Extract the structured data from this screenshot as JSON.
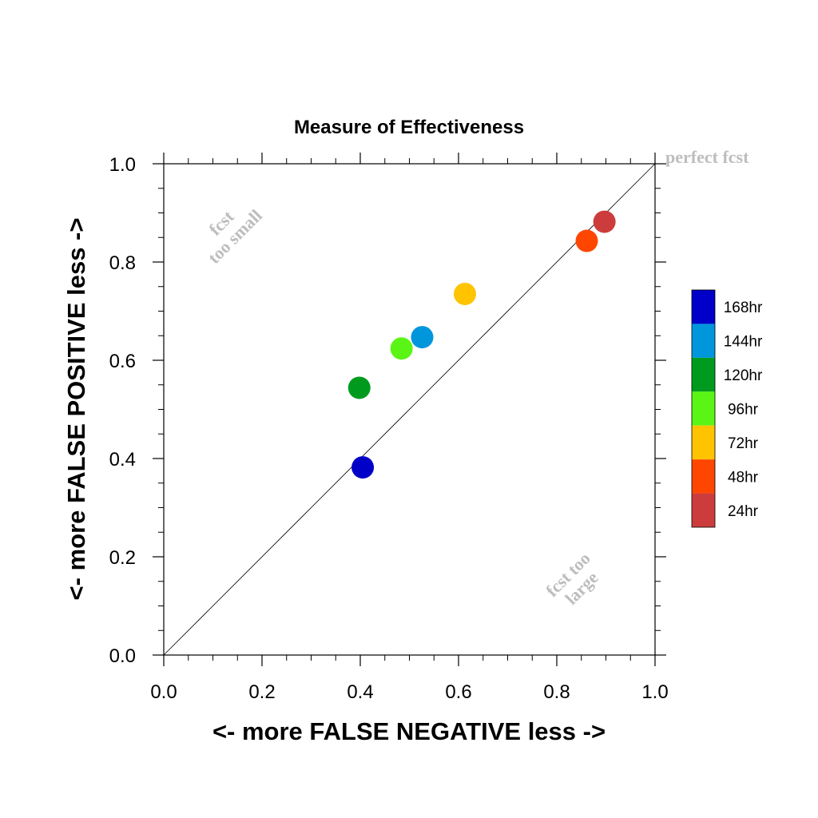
{
  "chart_data": {
    "type": "scatter",
    "title": "Measure of Effectiveness",
    "xlabel": "<- more   FALSE NEGATIVE   less ->",
    "ylabel": "<- more   FALSE POSITIVE   less ->",
    "xlim": [
      0,
      1
    ],
    "ylim": [
      0,
      1
    ],
    "x_ticks": [
      "0.0",
      "0.2",
      "0.4",
      "0.6",
      "0.8",
      "1.0"
    ],
    "y_ticks": [
      "0.0",
      "0.2",
      "0.4",
      "0.6",
      "0.8",
      "1.0"
    ],
    "grid": false,
    "diagonal_line": true,
    "annotations": {
      "perfect": "perfect fcst",
      "small_line1": "fcst",
      "small_line2": "too small",
      "large_line1": "fcst too",
      "large_line2": "large"
    },
    "legend_position": "right",
    "series": [
      {
        "name": "168hr",
        "x": 0.405,
        "y": 0.382,
        "color": "#0000c8"
      },
      {
        "name": "144hr",
        "x": 0.526,
        "y": 0.647,
        "color": "#0096dc"
      },
      {
        "name": "120hr",
        "x": 0.398,
        "y": 0.544,
        "color": "#009b1e"
      },
      {
        "name": "96hr",
        "x": 0.484,
        "y": 0.624,
        "color": "#5af514"
      },
      {
        "name": "72hr",
        "x": 0.613,
        "y": 0.735,
        "color": "#ffc300"
      },
      {
        "name": "48hr",
        "x": 0.861,
        "y": 0.843,
        "color": "#ff4600"
      },
      {
        "name": "24hr",
        "x": 0.897,
        "y": 0.882,
        "color": "#cd3c3c"
      }
    ]
  }
}
